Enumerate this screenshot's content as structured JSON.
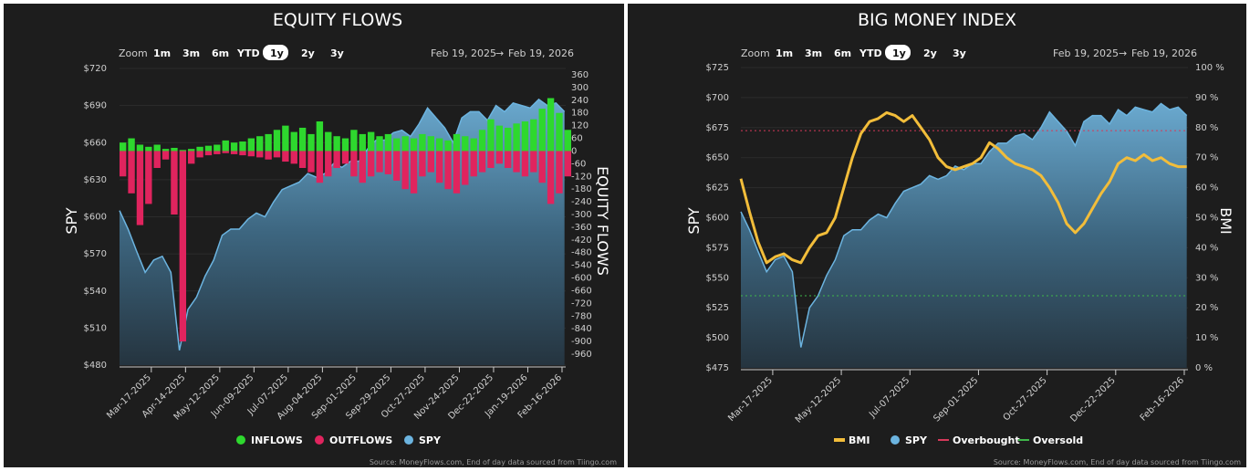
{
  "charts": [
    {
      "title": "EQUITY FLOWS",
      "zoom_label": "Zoom",
      "zoom_buttons": [
        "1m",
        "3m",
        "6m",
        "YTD",
        "1y",
        "2y",
        "3y"
      ],
      "zoom_selected": "1y",
      "date_from": "Feb 19, 2025",
      "date_arrow": "→",
      "date_to": "Feb 19, 2026",
      "left_axis_title": "SPY",
      "right_axis_title": "EQUITY FLOWS",
      "legend": [
        "INFLOWS",
        "OUTFLOWS",
        "SPY"
      ],
      "source": "Source: MoneyFlows.com, End of day data sourced from Tiingo.com"
    },
    {
      "title": "BIG MONEY INDEX",
      "zoom_label": "Zoom",
      "zoom_buttons": [
        "1m",
        "3m",
        "6m",
        "YTD",
        "1y",
        "2y",
        "3y"
      ],
      "zoom_selected": "1y",
      "date_from": "Feb 19, 2025",
      "date_arrow": "→",
      "date_to": "Feb 19, 2026",
      "left_axis_title": "SPY",
      "right_axis_title": "BMI",
      "legend": [
        "BMI",
        "SPY",
        "Overbought",
        "Oversold"
      ],
      "source": "Source: MoneyFlows.com, End of day data sourced from Tiingo.com"
    }
  ],
  "chart_data": [
    {
      "type": "bar+area",
      "title": "EQUITY FLOWS",
      "x_ticks": [
        "Mar-17-2025",
        "Apr-14-2025",
        "May-12-2025",
        "Jun-09-2025",
        "Jul-07-2025",
        "Aug-04-2025",
        "Sep-01-2025",
        "Sep-29-2025",
        "Oct-27-2025",
        "Nov-24-2025",
        "Dec-22-2025",
        "Jan-19-2026",
        "Feb-16-2026"
      ],
      "y_left_ticks": [
        "$720",
        "$690",
        "$660",
        "$630",
        "$600",
        "$570",
        "$540",
        "$510",
        "$480"
      ],
      "y_left_range": [
        480,
        720
      ],
      "y_right_ticks": [
        "360",
        "300",
        "240",
        "180",
        "120",
        "60",
        "0",
        "-60",
        "-120",
        "-180",
        "-240",
        "-300",
        "-360",
        "-420",
        "-480",
        "-540",
        "-600",
        "-660",
        "-720",
        "-780",
        "-840",
        "-900",
        "-960"
      ],
      "y_right_range": [
        -960,
        360
      ],
      "colors": {
        "inflows": "#2ed82e",
        "outflows": "#e0245e",
        "spy": "#6cb4e0"
      },
      "dates": [
        "2025-02-19",
        "2025-02-26",
        "2025-03-05",
        "2025-03-12",
        "2025-03-19",
        "2025-03-26",
        "2025-04-02",
        "2025-04-09",
        "2025-04-16",
        "2025-04-23",
        "2025-04-30",
        "2025-05-07",
        "2025-05-14",
        "2025-05-21",
        "2025-05-28",
        "2025-06-04",
        "2025-06-11",
        "2025-06-18",
        "2025-06-25",
        "2025-07-02",
        "2025-07-09",
        "2025-07-16",
        "2025-07-23",
        "2025-07-30",
        "2025-08-06",
        "2025-08-13",
        "2025-08-20",
        "2025-08-27",
        "2025-09-03",
        "2025-09-10",
        "2025-09-17",
        "2025-09-24",
        "2025-10-01",
        "2025-10-08",
        "2025-10-15",
        "2025-10-22",
        "2025-10-29",
        "2025-11-05",
        "2025-11-12",
        "2025-11-19",
        "2025-11-26",
        "2025-12-03",
        "2025-12-10",
        "2025-12-17",
        "2025-12-24",
        "2025-12-31",
        "2026-01-07",
        "2026-01-14",
        "2026-01-21",
        "2026-01-28",
        "2026-02-04",
        "2026-02-11",
        "2026-02-18"
      ],
      "series": [
        {
          "name": "SPY",
          "values": [
            605,
            590,
            572,
            555,
            565,
            568,
            555,
            492,
            525,
            535,
            552,
            565,
            585,
            590,
            590,
            598,
            603,
            600,
            612,
            622,
            625,
            628,
            635,
            632,
            635,
            643,
            640,
            645,
            645,
            655,
            662,
            662,
            668,
            670,
            665,
            675,
            688,
            680,
            672,
            660,
            680,
            685,
            685,
            678,
            690,
            685,
            692,
            690,
            688,
            695,
            690,
            692,
            685
          ]
        },
        {
          "name": "INFLOWS",
          "values": [
            40,
            60,
            30,
            20,
            30,
            10,
            15,
            5,
            10,
            20,
            25,
            30,
            50,
            40,
            45,
            60,
            70,
            80,
            100,
            120,
            90,
            110,
            80,
            140,
            90,
            70,
            60,
            100,
            80,
            90,
            70,
            80,
            60,
            70,
            60,
            80,
            70,
            60,
            50,
            80,
            70,
            60,
            100,
            150,
            120,
            110,
            130,
            140,
            150,
            200,
            250,
            180,
            100
          ]
        },
        {
          "name": "OUTFLOWS",
          "values": [
            -120,
            -200,
            -350,
            -250,
            -80,
            -40,
            -300,
            -900,
            -60,
            -30,
            -20,
            -15,
            -10,
            -15,
            -20,
            -25,
            -30,
            -40,
            -30,
            -50,
            -60,
            -80,
            -100,
            -150,
            -120,
            -80,
            -60,
            -120,
            -150,
            -120,
            -100,
            -110,
            -140,
            -180,
            -200,
            -120,
            -100,
            -150,
            -180,
            -200,
            -160,
            -120,
            -100,
            -80,
            -60,
            -80,
            -100,
            -120,
            -100,
            -150,
            -250,
            -200,
            -120
          ]
        }
      ]
    },
    {
      "type": "line+area",
      "title": "BIG MONEY INDEX",
      "x_ticks": [
        "Mar-17-2025",
        "May-12-2025",
        "Jul-07-2025",
        "Sep-01-2025",
        "Oct-27-2025",
        "Dec-22-2025",
        "Feb-16-2026"
      ],
      "y_left_ticks": [
        "$725",
        "$700",
        "$675",
        "$650",
        "$625",
        "$600",
        "$575",
        "$550",
        "$525",
        "$500",
        "$475"
      ],
      "y_left_range": [
        475,
        725
      ],
      "y_right_ticks": [
        "100 %",
        "90 %",
        "80 %",
        "70 %",
        "60 %",
        "50 %",
        "40 %",
        "30 %",
        "20 %",
        "10 %",
        "0 %"
      ],
      "y_right_range": [
        0,
        100
      ],
      "overbought": 79,
      "oversold": 24,
      "colors": {
        "bmi": "#f2bd3a",
        "spy": "#6cb4e0",
        "overbought": "#d6395a",
        "oversold": "#3fb84a"
      },
      "series": [
        {
          "name": "BMI",
          "values": [
            63,
            52,
            42,
            35,
            37,
            38,
            36,
            35,
            40,
            44,
            45,
            50,
            60,
            70,
            78,
            82,
            83,
            85,
            84,
            82,
            84,
            80,
            76,
            70,
            67,
            66,
            67,
            68,
            70,
            75,
            73,
            70,
            68,
            67,
            66,
            64,
            60,
            55,
            48,
            45,
            48,
            53,
            58,
            62,
            68,
            70,
            69,
            71,
            69,
            70,
            68,
            67,
            67
          ]
        },
        {
          "name": "SPY",
          "values": [
            605,
            590,
            572,
            555,
            565,
            568,
            555,
            492,
            525,
            535,
            552,
            565,
            585,
            590,
            590,
            598,
            603,
            600,
            612,
            622,
            625,
            628,
            635,
            632,
            635,
            643,
            640,
            645,
            645,
            655,
            662,
            662,
            668,
            670,
            665,
            675,
            688,
            680,
            672,
            660,
            680,
            685,
            685,
            678,
            690,
            685,
            692,
            690,
            688,
            695,
            690,
            692,
            685
          ]
        },
        {
          "name": "Overbought"
        },
        {
          "name": "Oversold"
        }
      ]
    }
  ]
}
